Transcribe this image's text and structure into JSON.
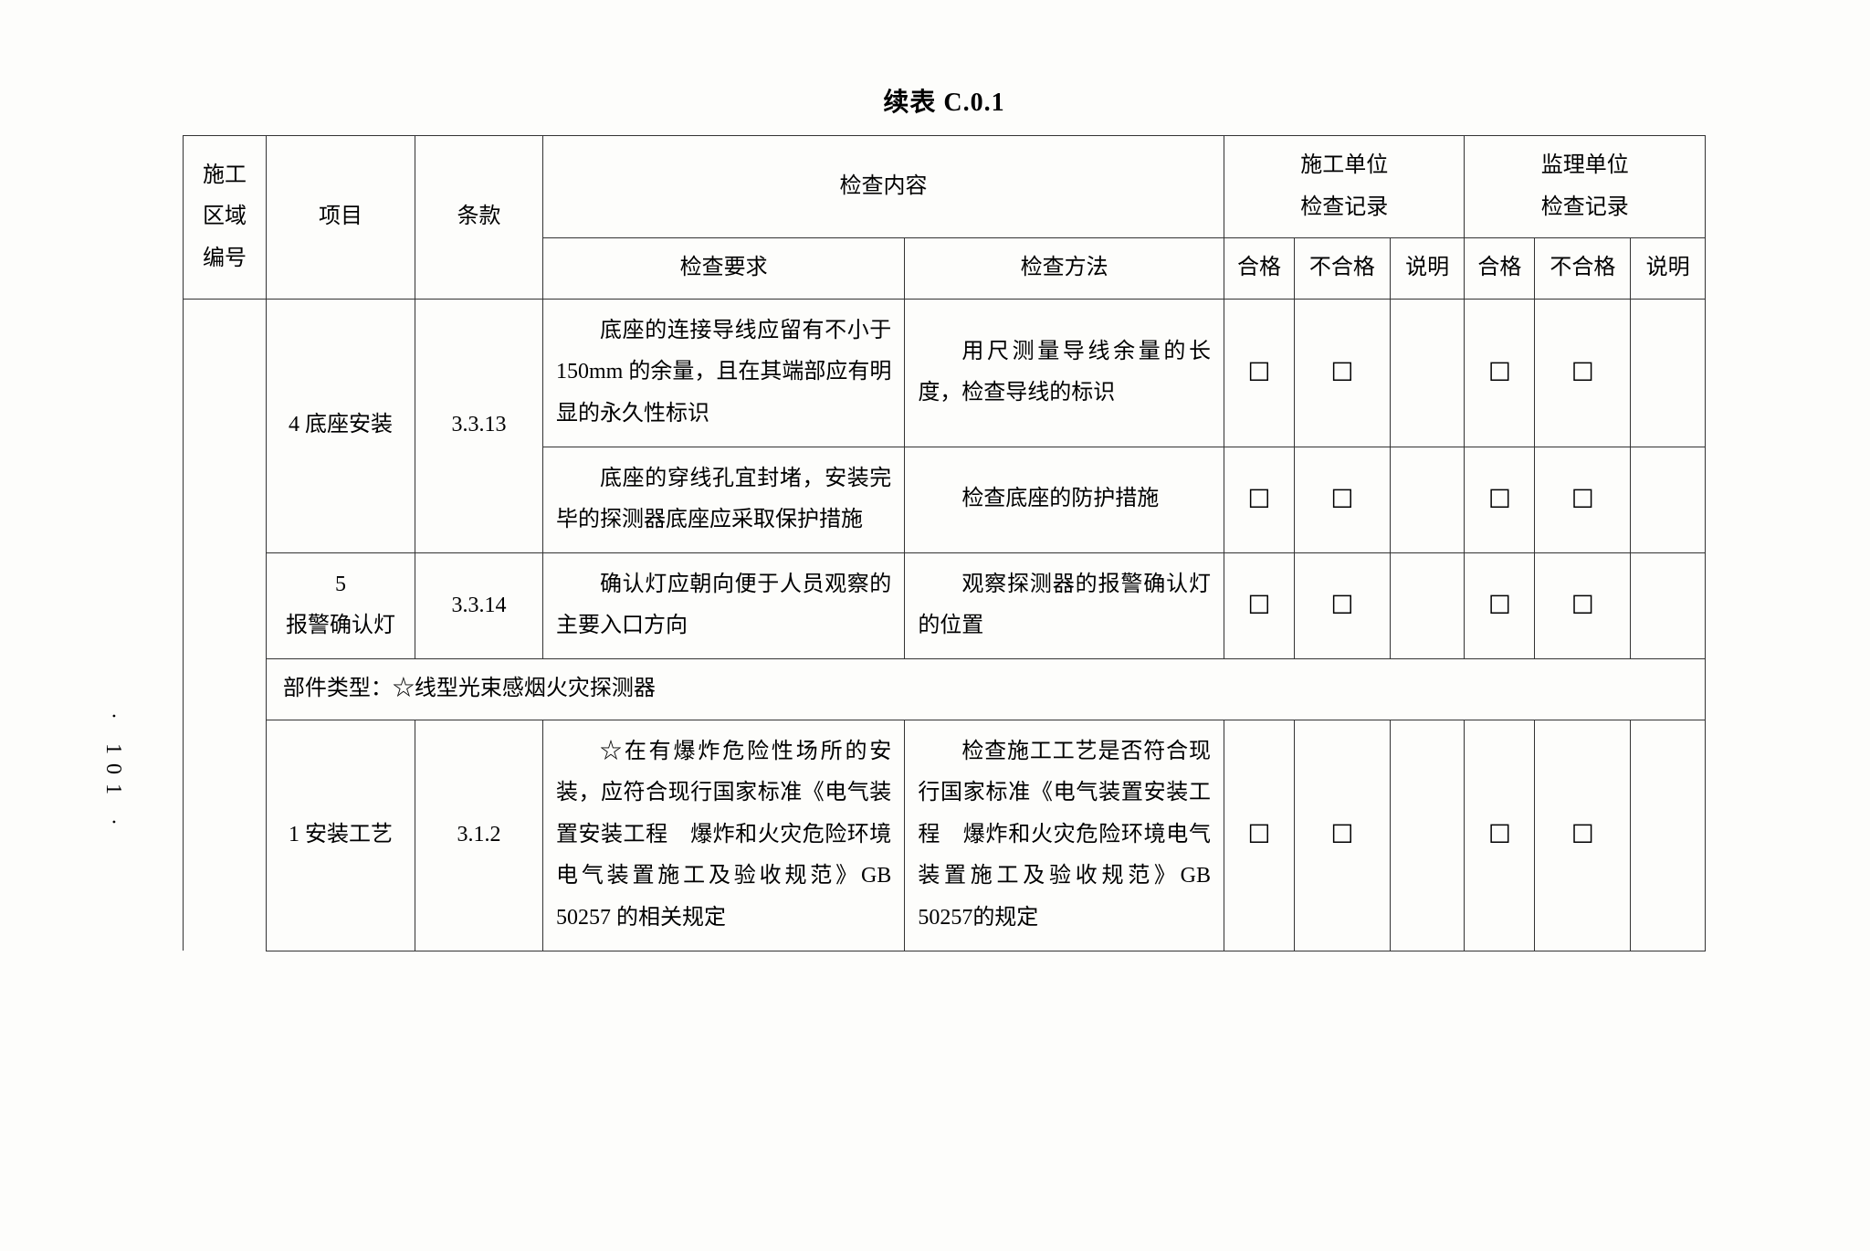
{
  "title": "续表 C.0.1",
  "pageNumber": "· 101 ·",
  "checkbox": "☐",
  "headers": {
    "areaNo": "施工\n区域\n编号",
    "project": "项目",
    "clause": "条款",
    "content": "检查内容",
    "requirement": "检查要求",
    "method": "检查方法",
    "constructor": "施工单位\n检查记录",
    "supervisor": "监理单位\n检查记录",
    "pass": "合格",
    "fail": "不合格",
    "note": "说明"
  },
  "rows": [
    {
      "project": "4 底座安装",
      "clause": "3.3.13",
      "req": "底座的连接导线应留有不小于 150mm 的余量，且在其端部应有明显的永久性标识",
      "method": "用尺测量导线余量的长度，检查导线的标识"
    },
    {
      "req": "底座的穿线孔宜封堵，安装完毕的探测器底座应采取保护措施",
      "method": "检查底座的防护措施"
    },
    {
      "project": "5\n报警确认灯",
      "clause": "3.3.14",
      "req": "确认灯应朝向便于人员观察的主要入口方向",
      "method": "观察探测器的报警确认灯的位置"
    }
  ],
  "sectionHeader": "部件类型：☆线型光束感烟火灾探测器",
  "rows2": [
    {
      "project": "1 安装工艺",
      "clause": "3.1.2",
      "req": "☆在有爆炸危险性场所的安装，应符合现行国家标准《电气装置安装工程　爆炸和火灾危险环境电气装置施工及验收规范》GB 50257 的相关规定",
      "method": "检查施工工艺是否符合现行国家标准《电气装置安装工程　爆炸和火灾危险环境电气装置施工及验收规范》GB 50257的规定"
    }
  ]
}
